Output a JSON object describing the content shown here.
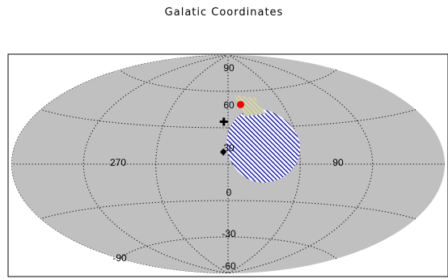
{
  "chart_data": {
    "type": "scatter",
    "projection": "aitoff",
    "title": "Galatic Coordinates",
    "grid": true,
    "lon_ticks": [
      "270",
      "90"
    ],
    "lat_ticks": [
      "90",
      "60",
      "30",
      "0",
      "-30",
      "-60",
      "-90"
    ],
    "background_color": "#c0c0c0",
    "regions": [
      {
        "shape": "circle",
        "center_lon": 330,
        "center_lat": 15,
        "radius_deg": 30,
        "fill_color": "#0000c0",
        "hatch": true
      },
      {
        "shape": "patch",
        "vertices_lon_lat": [
          [
            352,
            57
          ],
          [
            327,
            54
          ],
          [
            322,
            41
          ],
          [
            344,
            39
          ]
        ],
        "fill_color": "#d9d995",
        "hatch": true
      }
    ],
    "markers": [
      {
        "symbol": "circle",
        "lon": 346,
        "lat": 49,
        "color": "#ff0000"
      },
      {
        "symbol": "plus",
        "lon": 4,
        "lat": 35,
        "color": "#000000"
      },
      {
        "symbol": "diamond",
        "lon": 4,
        "lat": 10,
        "color": "#000000"
      }
    ]
  }
}
